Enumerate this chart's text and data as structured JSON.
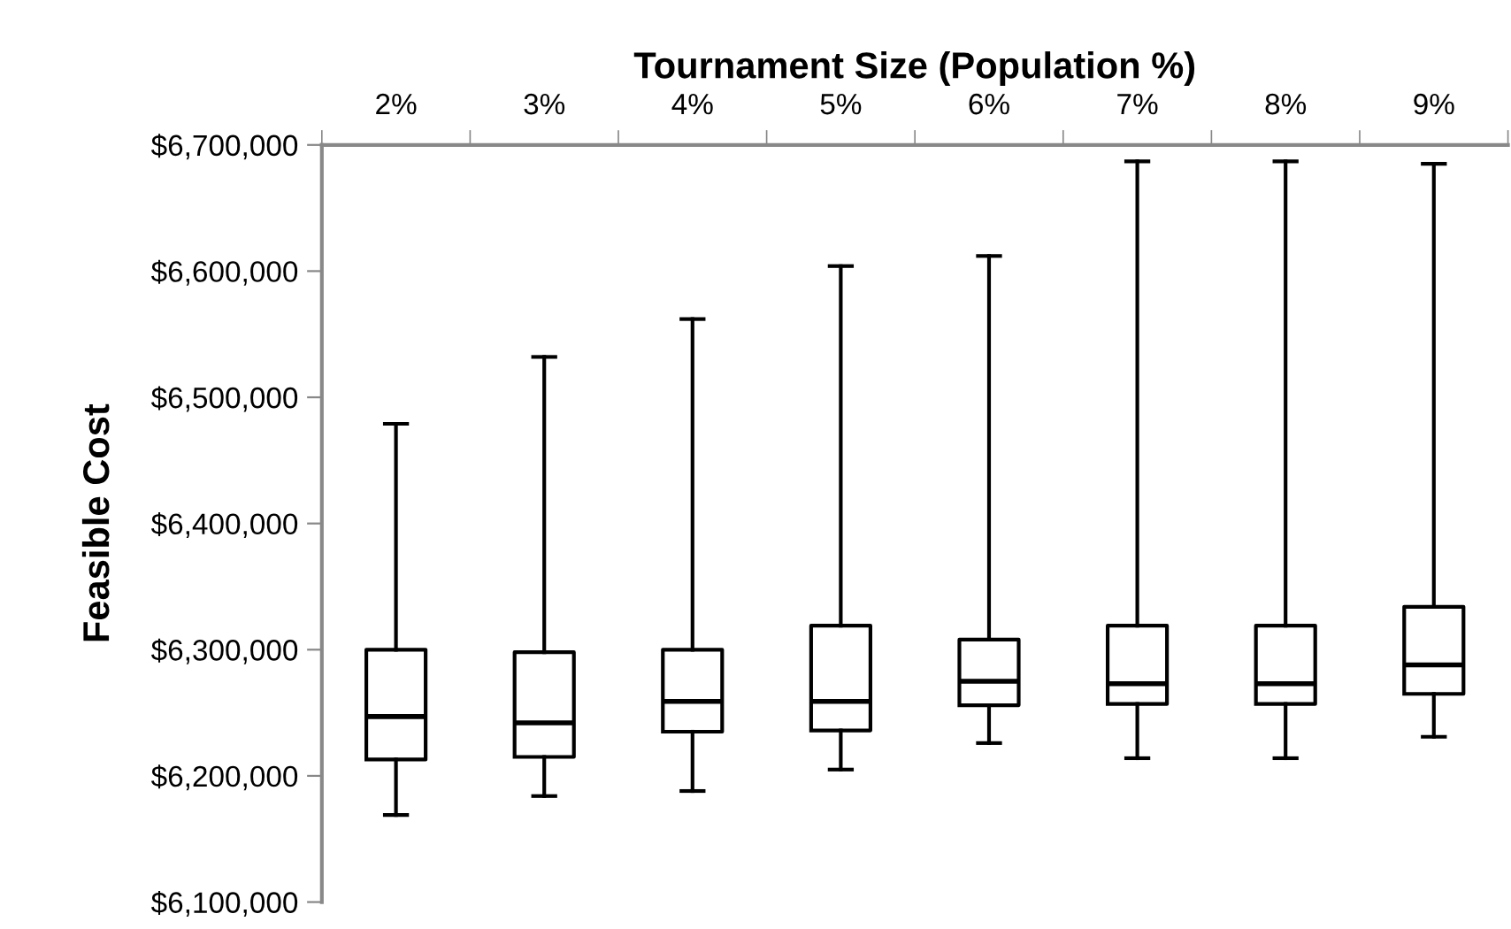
{
  "chart_data": {
    "type": "box",
    "xlabel": "Tournament Size (Population %)",
    "ylabel": "Feasible Cost",
    "categories": [
      "2%",
      "3%",
      "4%",
      "5%",
      "6%",
      "7%",
      "8%",
      "9%"
    ],
    "boxes": [
      {
        "low": 6169000,
        "q1": 6213000,
        "median": 6247000,
        "q3": 6300000,
        "high": 6479000
      },
      {
        "low": 6184000,
        "q1": 6215000,
        "median": 6242000,
        "q3": 6298000,
        "high": 6532000
      },
      {
        "low": 6188000,
        "q1": 6235000,
        "median": 6259000,
        "q3": 6300000,
        "high": 6562000
      },
      {
        "low": 6205000,
        "q1": 6236000,
        "median": 6259000,
        "q3": 6319000,
        "high": 6604000
      },
      {
        "low": 6226000,
        "q1": 6256000,
        "median": 6275000,
        "q3": 6308000,
        "high": 6612000
      },
      {
        "low": 6214000,
        "q1": 6257000,
        "median": 6273000,
        "q3": 6319000,
        "high": 6687000
      },
      {
        "low": 6214000,
        "q1": 6257000,
        "median": 6273000,
        "q3": 6319000,
        "high": 6687000
      },
      {
        "low": 6231000,
        "q1": 6265000,
        "median": 6288000,
        "q3": 6334000,
        "high": 6685000
      }
    ],
    "color": "#000000",
    "ylim": [
      6100000,
      6700000
    ],
    "yticks": [
      {
        "value": 6100000,
        "label": "$6,100,000"
      },
      {
        "value": 6200000,
        "label": "$6,200,000"
      },
      {
        "value": 6300000,
        "label": "$6,300,000"
      },
      {
        "value": 6400000,
        "label": "$6,400,000"
      },
      {
        "value": 6500000,
        "label": "$6,500,000"
      },
      {
        "value": 6600000,
        "label": "$6,600,000"
      },
      {
        "value": 6700000,
        "label": "$6,700,000"
      }
    ],
    "grid": false
  }
}
